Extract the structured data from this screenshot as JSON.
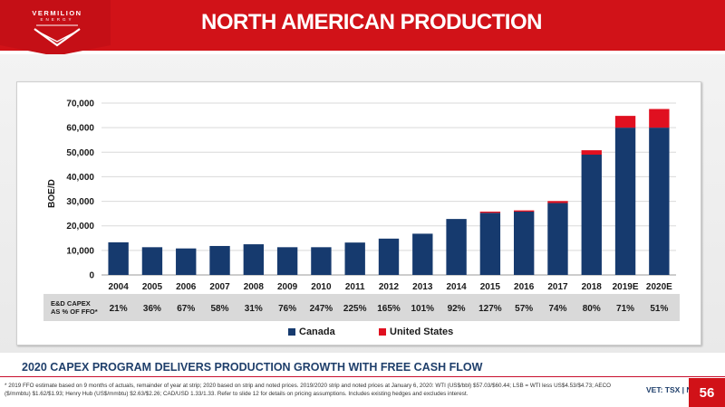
{
  "header": {
    "logo_name": "VERMILION",
    "logo_sub": "ENERGY",
    "title": "NORTH AMERICAN PRODUCTION"
  },
  "chart_data": {
    "type": "bar",
    "stacked": true,
    "categories": [
      "2004",
      "2005",
      "2006",
      "2007",
      "2008",
      "2009",
      "2010",
      "2011",
      "2012",
      "2013",
      "2014",
      "2015",
      "2016",
      "2017",
      "2018",
      "2019E",
      "2020E"
    ],
    "series": [
      {
        "name": "Canada",
        "color": "#163a6e",
        "values": [
          13300,
          11300,
          10800,
          11800,
          12500,
          11300,
          11300,
          13200,
          14800,
          16800,
          22800,
          25300,
          25800,
          29300,
          49000,
          60000,
          60000
        ]
      },
      {
        "name": "United States",
        "color": "#e01020",
        "values": [
          0,
          0,
          0,
          0,
          0,
          0,
          0,
          0,
          0,
          0,
          0,
          500,
          500,
          800,
          1800,
          4800,
          7600
        ]
      }
    ],
    "title": "",
    "xlabel": "",
    "ylabel": "BOE/D",
    "ylim": [
      0,
      70000
    ],
    "yticks": [
      "0",
      "10,000",
      "20,000",
      "30,000",
      "40,000",
      "50,000",
      "60,000",
      "70,000"
    ],
    "grid": true,
    "legend_position": "bottom"
  },
  "capex": {
    "label_line1": "E&D CAPEX",
    "label_line2": "AS % OF FFO*",
    "values": [
      "21%",
      "36%",
      "67%",
      "58%",
      "31%",
      "76%",
      "247%",
      "225%",
      "165%",
      "101%",
      "92%",
      "127%",
      "57%",
      "74%",
      "80%",
      "71%",
      "51%"
    ]
  },
  "legend": {
    "canada": "Canada",
    "us": "United States"
  },
  "subheading": "2020 CAPEX PROGRAM DELIVERS PRODUCTION GROWTH WITH FREE CASH FLOW",
  "footnote": "* 2019 FFO estimate based on 9 months of actuals, remainder of year at strip; 2020 based on strip and noted prices. 2019/2020 strip and noted prices at January 6, 2020:  WTI (US$/bbl) $57.03/$60.44; LSB = WTI less US$4.53/$4.73; AECO ($/mmbtu) $1.62/$1.93; Henry Hub (US$/mmbtu) $2.63/$2.26; CAD/USD 1.33/1.33. Refer to slide 12 for details on pricing assumptions.  Includes existing hedges and excludes interest.",
  "exchange": "VET: TSX | NYSE",
  "page_number": "56"
}
